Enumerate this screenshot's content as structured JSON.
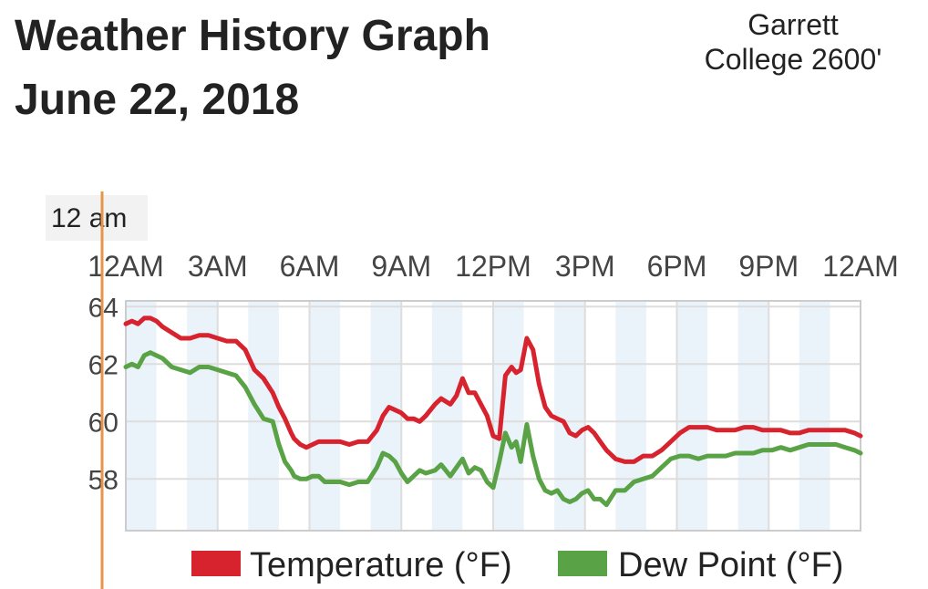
{
  "header": {
    "title_line1": "Weather History Graph",
    "title_line2": "June 22, 2018",
    "station_line1": "Garrett",
    "station_line2": "College 2600'"
  },
  "cursor": {
    "label": "12 am",
    "hour": 0,
    "color": "#e8954a"
  },
  "colors": {
    "temperature": "#d7232e",
    "dew_point": "#5aa246",
    "band": "#eaf2fa",
    "grid": "#dddddd"
  },
  "chart_data": {
    "type": "line",
    "title": "Weather History Graph June 22, 2018",
    "x_unit": "hour of day",
    "x_tick_values": [
      0,
      3,
      6,
      9,
      12,
      15,
      18,
      21,
      24
    ],
    "x_tick_labels": [
      "12AM",
      "3AM",
      "6AM",
      "9AM",
      "12PM",
      "3PM",
      "6PM",
      "9PM",
      "12AM"
    ],
    "xlim": [
      0,
      24
    ],
    "y_ticks": [
      58,
      60,
      62,
      64
    ],
    "ylim": [
      56.2,
      64.2
    ],
    "grid": true,
    "legend_position": "bottom-right",
    "series": [
      {
        "name": "Temperature (°F)",
        "color": "#d7232e",
        "x": [
          0,
          0.2,
          0.4,
          0.6,
          0.8,
          1.0,
          1.2,
          1.5,
          1.8,
          2.1,
          2.4,
          2.7,
          3.0,
          3.3,
          3.6,
          3.9,
          4.2,
          4.5,
          4.8,
          5.0,
          5.2,
          5.4,
          5.5,
          5.7,
          5.9,
          6.1,
          6.3,
          6.5,
          6.7,
          7.0,
          7.3,
          7.6,
          7.9,
          8.2,
          8.4,
          8.6,
          8.8,
          9.0,
          9.2,
          9.4,
          9.6,
          9.8,
          10.1,
          10.3,
          10.6,
          10.8,
          11.0,
          11.2,
          11.4,
          11.6,
          11.8,
          12.0,
          12.2,
          12.4,
          12.6,
          12.75,
          12.9,
          13.1,
          13.3,
          13.5,
          13.7,
          13.9,
          14.1,
          14.3,
          14.5,
          14.7,
          14.9,
          15.1,
          15.3,
          15.5,
          15.7,
          16.0,
          16.3,
          16.6,
          16.9,
          17.2,
          17.5,
          17.8,
          18.1,
          18.4,
          18.7,
          19.0,
          19.3,
          19.6,
          19.9,
          20.2,
          20.5,
          20.8,
          21.1,
          21.4,
          21.7,
          22.0,
          22.3,
          22.6,
          22.9,
          23.2,
          23.5,
          23.8,
          24.0
        ],
        "values": [
          63.4,
          63.5,
          63.4,
          63.6,
          63.6,
          63.5,
          63.3,
          63.1,
          62.9,
          62.9,
          63.0,
          63.0,
          62.9,
          62.8,
          62.8,
          62.5,
          61.8,
          61.5,
          61.0,
          60.5,
          60.1,
          59.6,
          59.4,
          59.2,
          59.1,
          59.2,
          59.3,
          59.3,
          59.3,
          59.3,
          59.2,
          59.3,
          59.3,
          59.7,
          60.2,
          60.5,
          60.4,
          60.3,
          60.1,
          60.1,
          60.0,
          60.2,
          60.6,
          60.8,
          60.6,
          60.9,
          61.5,
          61.0,
          61.0,
          60.6,
          60.2,
          59.5,
          59.4,
          61.6,
          61.9,
          61.7,
          61.8,
          62.9,
          62.5,
          61.3,
          60.5,
          60.2,
          60.1,
          60.0,
          59.6,
          59.5,
          59.7,
          59.8,
          59.6,
          59.3,
          59.0,
          58.7,
          58.6,
          58.6,
          58.8,
          58.8,
          59.0,
          59.3,
          59.6,
          59.8,
          59.8,
          59.8,
          59.7,
          59.7,
          59.7,
          59.8,
          59.8,
          59.7,
          59.7,
          59.7,
          59.6,
          59.6,
          59.7,
          59.7,
          59.7,
          59.7,
          59.7,
          59.6,
          59.5
        ]
      },
      {
        "name": "Dew Point (°F)",
        "color": "#5aa246",
        "x": [
          0,
          0.2,
          0.4,
          0.6,
          0.8,
          1.0,
          1.2,
          1.5,
          1.8,
          2.1,
          2.4,
          2.7,
          3.0,
          3.3,
          3.6,
          3.9,
          4.2,
          4.5,
          4.8,
          5.0,
          5.2,
          5.4,
          5.5,
          5.7,
          5.9,
          6.1,
          6.3,
          6.5,
          6.7,
          7.0,
          7.3,
          7.6,
          7.9,
          8.2,
          8.4,
          8.6,
          8.8,
          9.0,
          9.2,
          9.4,
          9.6,
          9.8,
          10.1,
          10.3,
          10.6,
          10.8,
          11.0,
          11.2,
          11.4,
          11.6,
          11.8,
          12.0,
          12.2,
          12.4,
          12.6,
          12.75,
          12.9,
          13.1,
          13.3,
          13.5,
          13.7,
          13.9,
          14.1,
          14.3,
          14.5,
          14.7,
          14.9,
          15.1,
          15.3,
          15.5,
          15.7,
          16.0,
          16.3,
          16.6,
          16.9,
          17.2,
          17.5,
          17.8,
          18.1,
          18.4,
          18.7,
          19.0,
          19.3,
          19.6,
          19.9,
          20.2,
          20.5,
          20.8,
          21.1,
          21.4,
          21.7,
          22.0,
          22.3,
          22.6,
          22.9,
          23.2,
          23.5,
          23.8,
          24.0
        ],
        "values": [
          61.9,
          62.0,
          61.9,
          62.3,
          62.4,
          62.3,
          62.2,
          61.9,
          61.8,
          61.7,
          61.9,
          61.9,
          61.8,
          61.7,
          61.6,
          61.2,
          60.6,
          60.1,
          60.0,
          59.2,
          58.6,
          58.3,
          58.1,
          58.0,
          58.0,
          58.1,
          58.1,
          57.9,
          57.9,
          57.9,
          57.8,
          57.9,
          57.9,
          58.4,
          58.9,
          58.8,
          58.6,
          58.2,
          57.9,
          58.1,
          58.3,
          58.2,
          58.3,
          58.5,
          58.1,
          58.4,
          58.7,
          58.2,
          58.4,
          58.3,
          57.9,
          57.7,
          58.6,
          59.6,
          59.1,
          59.3,
          58.6,
          59.9,
          58.8,
          58.0,
          57.6,
          57.5,
          57.6,
          57.3,
          57.2,
          57.3,
          57.5,
          57.6,
          57.3,
          57.3,
          57.1,
          57.6,
          57.6,
          57.9,
          58.0,
          58.1,
          58.4,
          58.7,
          58.8,
          58.8,
          58.7,
          58.8,
          58.8,
          58.8,
          58.9,
          58.9,
          58.9,
          59.0,
          59.0,
          59.1,
          59.0,
          59.1,
          59.2,
          59.2,
          59.2,
          59.2,
          59.1,
          59.0,
          58.9
        ]
      }
    ]
  }
}
